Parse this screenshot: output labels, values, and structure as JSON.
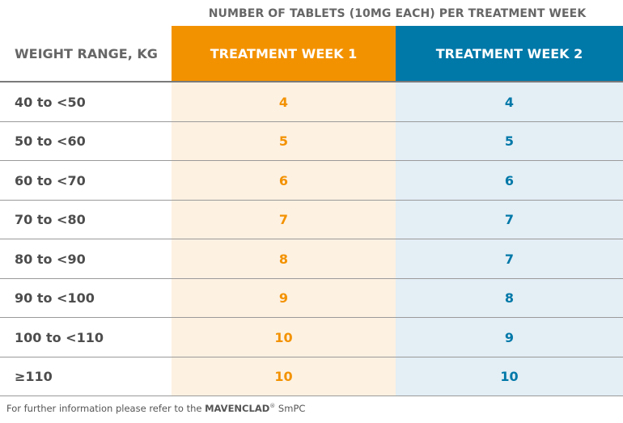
{
  "table": {
    "supertitle": "NUMBER OF TABLETS (10MG EACH) PER TREATMENT WEEK",
    "header": {
      "weight": "WEIGHT RANGE, KG",
      "week1": "TREATMENT WEEK 1",
      "week2": "TREATMENT WEEK 2"
    },
    "rows": [
      {
        "weight": "40 to <50",
        "week1": "4",
        "week2": "4"
      },
      {
        "weight": "50 to <60",
        "week1": "5",
        "week2": "5"
      },
      {
        "weight": "60 to <70",
        "week1": "6",
        "week2": "6"
      },
      {
        "weight": "70 to <80",
        "week1": "7",
        "week2": "7"
      },
      {
        "weight": "80 to <90",
        "week1": "8",
        "week2": "7"
      },
      {
        "weight": "90 to <100",
        "week1": "9",
        "week2": "8"
      },
      {
        "weight": "100 to <110",
        "week1": "10",
        "week2": "9"
      },
      {
        "weight": "≥110",
        "week1": "10",
        "week2": "10"
      }
    ]
  },
  "footnote": {
    "prefix": "For further information please refer to the ",
    "brand": "MAVENCLAD",
    "mark": "®",
    "suffix": " SmPC"
  },
  "colors": {
    "week1_accent": "#F39200",
    "week1_fill": "#FDF1E2",
    "week2_accent": "#0078A8",
    "week2_fill": "#E3EEF5",
    "label_text": "#666666"
  }
}
